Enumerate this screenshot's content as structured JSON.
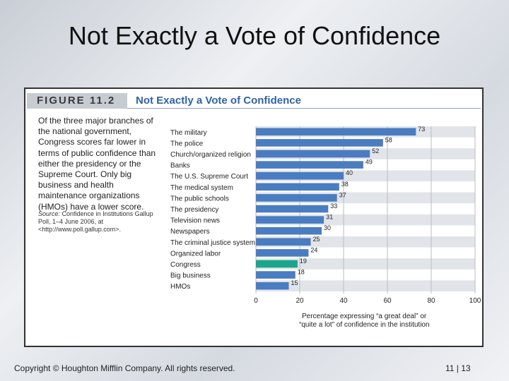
{
  "slide": {
    "title": "Not Exactly a Vote of Confidence",
    "copyright": "Copyright © Houghton Mifflin Company. All rights reserved.",
    "page": "11 | 13"
  },
  "figure": {
    "label": "FIGURE 11.2",
    "title": "Not Exactly a Vote of Confidence",
    "description": "Of the three major branches of the national government, Congress scores far lower in terms of public confidence than either the presidency or the Supreme Court. Only big business and health maintenance organizations (HMOs) have a lower score.",
    "source_label": "Source:",
    "source_text": " Confidence in Institutions Gallup Poll, 1–4 June 2006, at <http://www.poll.gallup.com>."
  },
  "colors": {
    "bar": "#4a7cc1",
    "highlight": "#1aa58c",
    "band": "#e1e4e8"
  },
  "chart_data": {
    "type": "bar",
    "orientation": "horizontal",
    "categories": [
      "The military",
      "The police",
      "Church/organized religion",
      "Banks",
      "The U.S. Supreme Court",
      "The medical system",
      "The public schools",
      "The presidency",
      "Television news",
      "Newspapers",
      "The criminal justice system",
      "Organized labor",
      "Congress",
      "Big business",
      "HMOs"
    ],
    "values": [
      73,
      58,
      52,
      49,
      40,
      38,
      37,
      33,
      31,
      30,
      25,
      24,
      19,
      18,
      15
    ],
    "highlight_category": "Congress",
    "xlim": [
      0,
      100
    ],
    "xticks": [
      0,
      20,
      40,
      60,
      80,
      100
    ],
    "xlabel_line1": "Percentage expressing “a great deal” or",
    "xlabel_line2": "“quite a lot” of confidence in the institution",
    "grid": true
  }
}
